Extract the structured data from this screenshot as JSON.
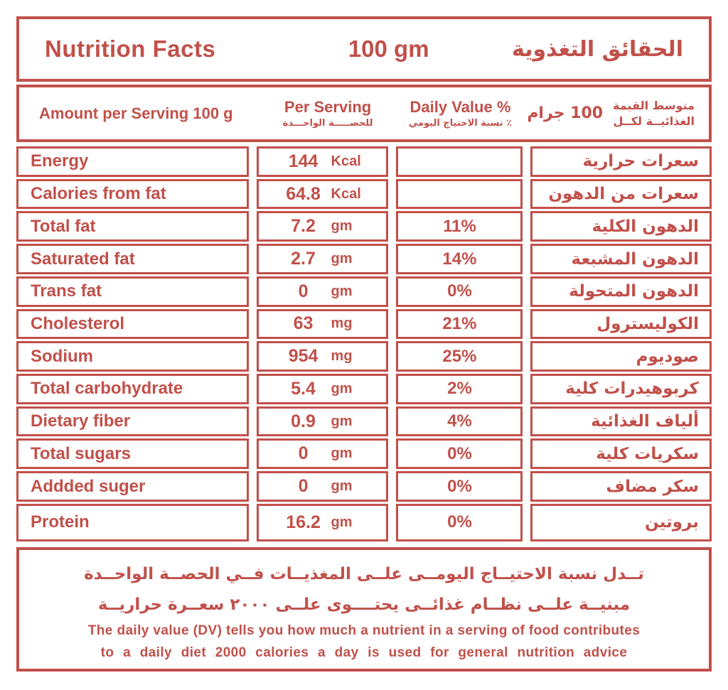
{
  "colors": {
    "accent_red": "#c1504a",
    "background": "#ffffff"
  },
  "header": {
    "title_en": "Nutrition Facts",
    "serving_size": "100 gm",
    "title_ar": "الحقائق التغذوية"
  },
  "subheader": {
    "amount_label": "Amount per Serving 100 g",
    "per_serving_en": "Per Serving",
    "per_serving_ar": "للحصـــــة الواحـــدة",
    "daily_value_en": "Daily Value %",
    "daily_value_ar": "٪ نسبة الاحتياج اليومي",
    "per_100_value_ar": "100 جرام",
    "per_100_label_ar_line1": "متوسط القيمة",
    "per_100_label_ar_line2": "الغذائيــة لكــل"
  },
  "rows": [
    {
      "name_en": "Energy",
      "value": "144",
      "unit": "Kcal",
      "dv": "",
      "name_ar": "سعرات حرارية"
    },
    {
      "name_en": "Calories from fat",
      "value": "64.8",
      "unit": "Kcal",
      "dv": "",
      "name_ar": "سعرات من الدهون"
    },
    {
      "name_en": "Total fat",
      "value": "7.2",
      "unit": "gm",
      "dv": "11%",
      "name_ar": "الدهون الكلية"
    },
    {
      "name_en": "Saturated fat",
      "value": "2.7",
      "unit": "gm",
      "dv": "14%",
      "name_ar": "الدهون المشبعة"
    },
    {
      "name_en": "Trans fat",
      "value": "0",
      "unit": "gm",
      "dv": "0%",
      "name_ar": "الدهون المتحولة"
    },
    {
      "name_en": "Cholesterol",
      "value": "63",
      "unit": "mg",
      "dv": "21%",
      "name_ar": "الكوليسترول"
    },
    {
      "name_en": "Sodium",
      "value": "954",
      "unit": "mg",
      "dv": "25%",
      "name_ar": "صوديوم"
    },
    {
      "name_en": "Total carbohydrate",
      "value": "5.4",
      "unit": "gm",
      "dv": "2%",
      "name_ar": "كربوهيدرات كلية"
    },
    {
      "name_en": "Dietary fiber",
      "value": "0.9",
      "unit": "gm",
      "dv": "4%",
      "name_ar": "ألياف الغذائية"
    },
    {
      "name_en": "Total sugars",
      "value": "0",
      "unit": "gm",
      "dv": "0%",
      "name_ar": "سكريات كلية"
    },
    {
      "name_en": "Addded suger",
      "value": "0",
      "unit": "gm",
      "dv": "0%",
      "name_ar": "سكر مضاف"
    },
    {
      "name_en": "Protein",
      "value": "16.2",
      "unit": "gm",
      "dv": "0%",
      "name_ar": "بروتين"
    }
  ],
  "footer": {
    "ar_line1": "تــدل نسبة الاحتيــاج اليومــى علــى المغذيــات فــي الحصــة الواحــدة",
    "ar_line2": "مبنيــة علــى نظــام غذائــى يحتــــوى علــى ٢٠٠٠ سعــرة حراريــة",
    "en_line1": "The daily value (DV) tells you how much a nutrient in a serving of food contributes",
    "en_line2": "to a daily diet 2000 calories a day is used for general nutrition advice"
  }
}
